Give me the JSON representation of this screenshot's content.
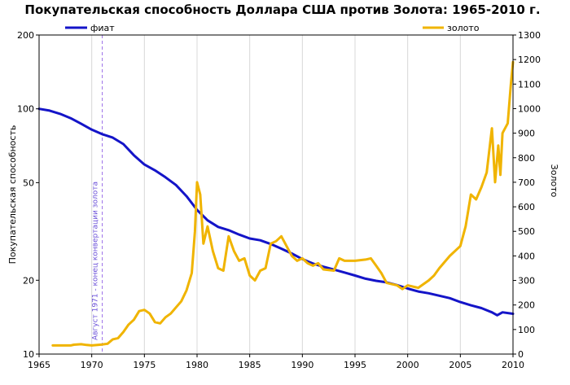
{
  "chart_data": {
    "type": "line",
    "title": "Покупательская способность Доллара США против Золота: 1965-2010 г.",
    "ylabel_left": "Покупательская способность",
    "ylabel_right": "Золото",
    "x_ticks": [
      "1965",
      "1970",
      "1975",
      "1980",
      "1985",
      "1990",
      "1995",
      "2000",
      "2005",
      "2010"
    ],
    "x_range": [
      1965,
      2010
    ],
    "y_left_scale": "log",
    "y_left_range": [
      10,
      200
    ],
    "y_left_ticks": [
      "10",
      "20",
      "50",
      "100",
      "200"
    ],
    "y_right_range": [
      0,
      1300
    ],
    "y_right_ticks": [
      "0",
      "100",
      "200",
      "300",
      "400",
      "500",
      "600",
      "700",
      "800",
      "900",
      "1000",
      "1100",
      "1200",
      "1300"
    ],
    "grid": "vertical",
    "legend": [
      "фиат",
      "золото"
    ],
    "colors": {
      "fiat": "#1414c8",
      "gold": "#f0b400",
      "annotation": "#9a6ee8"
    },
    "annotation": {
      "x": 1971,
      "text": "Август 1971 - конец конвертации золота"
    },
    "series": [
      {
        "name": "фиат",
        "axis": "left",
        "x": [
          1965,
          1966,
          1967,
          1968,
          1969,
          1970,
          1971,
          1972,
          1973,
          1974,
          1975,
          1976,
          1977,
          1978,
          1979,
          1980,
          1981,
          1982,
          1983,
          1984,
          1985,
          1986,
          1987,
          1988,
          1989,
          1990,
          1991,
          1992,
          1993,
          1994,
          1995,
          1996,
          1997,
          1998,
          1999,
          2000,
          2001,
          2002,
          2003,
          2004,
          2005,
          2006,
          2007,
          2008,
          2008.5,
          2009,
          2010
        ],
        "y": [
          100,
          98.3,
          95.4,
          91.6,
          86.9,
          82.2,
          78.8,
          76.3,
          71.8,
          64.7,
          59.3,
          56.1,
          52.6,
          48.9,
          44.0,
          38.7,
          35.1,
          33.0,
          32.0,
          30.7,
          29.6,
          29.1,
          28.1,
          26.9,
          25.7,
          24.4,
          23.4,
          22.7,
          22.1,
          21.5,
          20.9,
          20.3,
          19.9,
          19.6,
          19.1,
          18.5,
          18.0,
          17.7,
          17.3,
          16.9,
          16.3,
          15.8,
          15.4,
          14.8,
          14.4,
          14.8,
          14.6
        ]
      },
      {
        "name": "золото",
        "axis": "right",
        "x": [
          1966.3,
          1967,
          1968,
          1968.3,
          1969,
          1969.5,
          1970,
          1971,
          1971.5,
          1972,
          1972.5,
          1973,
          1973.5,
          1974,
          1974.5,
          1975,
          1975.5,
          1976,
          1976.5,
          1977,
          1977.5,
          1978,
          1978.5,
          1979,
          1979.5,
          1979.8,
          1980,
          1980.3,
          1980.6,
          1981,
          1981.5,
          1982,
          1982.5,
          1983,
          1983.5,
          1984,
          1984.5,
          1985,
          1985.5,
          1986,
          1986.5,
          1987,
          1987.5,
          1988,
          1988.5,
          1989,
          1989.5,
          1990,
          1990.5,
          1991,
          1991.5,
          1992,
          1993,
          1993.5,
          1994,
          1995,
          1996,
          1996.5,
          1997,
          1997.5,
          1998,
          1999,
          1999.5,
          2000,
          2000.5,
          2001,
          2002,
          2002.5,
          2003,
          2004,
          2005,
          2005.5,
          2006,
          2006.5,
          2007,
          2007.5,
          2008,
          2008.3,
          2008.6,
          2008.8,
          2009,
          2009.5,
          2009.8,
          2010
        ],
        "y": [
          35,
          35,
          35,
          38,
          40,
          37,
          35,
          39,
          42,
          60,
          65,
          90,
          120,
          140,
          175,
          180,
          165,
          130,
          125,
          150,
          165,
          190,
          215,
          260,
          330,
          500,
          700,
          650,
          450,
          520,
          420,
          350,
          340,
          480,
          420,
          380,
          390,
          320,
          300,
          340,
          350,
          450,
          460,
          480,
          440,
          400,
          380,
          390,
          370,
          360,
          370,
          345,
          340,
          390,
          380,
          380,
          385,
          390,
          360,
          330,
          290,
          280,
          265,
          280,
          275,
          270,
          300,
          320,
          350,
          400,
          440,
          520,
          650,
          630,
          680,
          740,
          920,
          700,
          850,
          730,
          900,
          940,
          1100,
          1190
        ]
      }
    ]
  }
}
